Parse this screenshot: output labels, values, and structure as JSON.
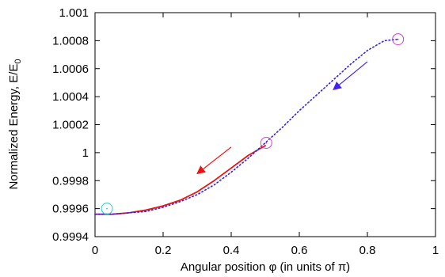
{
  "chart_data": {
    "type": "line",
    "xlabel_main": "Angular position φ (in units of π)",
    "ylabel_main": "Normalized Energy, E/E",
    "ylabel_sub": "0",
    "xlim": [
      0,
      1
    ],
    "ylim": [
      0.9994,
      1.001
    ],
    "x_ticks": [
      0,
      0.2,
      0.4,
      0.6,
      0.8,
      1
    ],
    "x_tick_labels": [
      "0",
      "0.2",
      "0.4",
      "0.6",
      "0.8",
      "1"
    ],
    "y_ticks": [
      0.9994,
      0.9996,
      0.9998,
      1.0,
      1.0002,
      1.0004,
      1.0006,
      1.0008,
      1.001
    ],
    "y_tick_labels": [
      "0.9994",
      "0.9996",
      "0.9998",
      "1",
      "1.0002",
      "1.0004",
      "1.0006",
      "1.0008",
      "1.001"
    ],
    "grid": false,
    "series": [
      {
        "style": "solid",
        "color": "#ee1111",
        "x": [
          0.0,
          0.05,
          0.1,
          0.15,
          0.2,
          0.25,
          0.3,
          0.35,
          0.4,
          0.45,
          0.5
        ],
        "y": [
          0.99956,
          0.99956,
          0.99957,
          0.99959,
          0.99962,
          0.99966,
          0.99972,
          0.9998,
          0.99989,
          0.99998,
          1.00005
        ]
      },
      {
        "style": "dotted",
        "color": "#3322dd",
        "x": [
          0.0,
          0.05,
          0.1,
          0.15,
          0.2,
          0.25,
          0.3,
          0.35,
          0.4,
          0.45,
          0.5,
          0.55,
          0.6,
          0.65,
          0.7,
          0.75,
          0.8,
          0.85,
          0.89
        ],
        "y": [
          0.99956,
          0.99956,
          0.99957,
          0.99958,
          0.99961,
          0.99965,
          0.9997,
          0.99977,
          0.99986,
          0.99996,
          1.00007,
          1.00018,
          1.0003,
          1.00041,
          1.00052,
          1.00063,
          1.00073,
          1.0008,
          1.00081
        ]
      }
    ],
    "markers": [
      {
        "name": "start-circle",
        "color": "#cc44cc",
        "x": 0.89,
        "y": 1.00081
      },
      {
        "name": "mid-circle",
        "color": "#cc44cc",
        "x": 0.503,
        "y": 1.00007
      },
      {
        "name": "end-circle",
        "color": "#22cccc",
        "x": 0.035,
        "y": 0.9996
      }
    ],
    "arrows": [
      {
        "name": "blue-arrow",
        "color": "#4422ee",
        "from": [
          0.8,
          1.00065
        ],
        "to": [
          0.7,
          1.00045
        ]
      },
      {
        "name": "red-arrow",
        "color": "#ee1111",
        "from": [
          0.4,
          1.00004
        ],
        "to": [
          0.3,
          0.99985
        ]
      }
    ]
  }
}
